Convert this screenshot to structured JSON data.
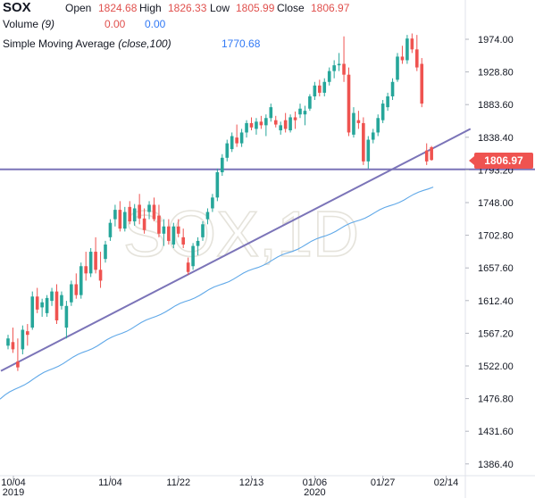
{
  "header": {
    "symbol": "SOX",
    "open_label": "Open",
    "open_value": "1824.68",
    "high_label": "High",
    "high_value": "1826.33",
    "low_label": "Low",
    "low_value": "1805.99",
    "close_label": "Close",
    "close_value": "1806.97"
  },
  "indicators": {
    "volume_label": "Volume",
    "volume_param": "(9)",
    "volume_value_1": "0.00",
    "volume_value_2": "0.00",
    "sma_label": "Simple Moving Average",
    "sma_param": "(close,100)",
    "sma_value": "1770.68"
  },
  "watermark": "SOX,1D",
  "last_price_tag": "1806.97",
  "colors": {
    "up": "#26a69a",
    "down": "#ef5350",
    "trendline": "#7b74b8",
    "sma": "#5fa8e8",
    "price_tag": "#ef5350"
  },
  "chart_data": {
    "type": "candlestick",
    "title": "SOX",
    "interval": "1D",
    "y_axis": {
      "ticks": [
        1974.0,
        1928.8,
        1883.6,
        1838.4,
        1793.2,
        1748.0,
        1702.8,
        1657.6,
        1612.4,
        1567.2,
        1522.0,
        1476.8,
        1431.6,
        1386.4
      ],
      "tick_labels": [
        "1974.00",
        "1928.80",
        "1883.60",
        "1838.40",
        "1793.20",
        "1748.00",
        "1702.80",
        "1657.60",
        "1612.40",
        "1567.20",
        "1522.00",
        "1476.80",
        "1431.60",
        "1386.40"
      ],
      "position": "right",
      "range": [
        1365,
        2013
      ]
    },
    "x_axis": {
      "ticks": [
        {
          "label": "10/04",
          "sub": "2019",
          "index": 0
        },
        {
          "label": "11/04",
          "sub": "",
          "index": 21
        },
        {
          "label": "11/22",
          "sub": "",
          "index": 35
        },
        {
          "label": "12/13",
          "sub": "",
          "index": 50
        },
        {
          "label": "01/06",
          "sub": "2020",
          "index": 63
        },
        {
          "label": "01/27",
          "sub": "",
          "index": 77
        },
        {
          "label": "02/14",
          "sub": "",
          "index": 90
        }
      ]
    },
    "candles": [
      [
        1550,
        1565,
        1545,
        1560
      ],
      [
        1555,
        1575,
        1540,
        1545
      ],
      [
        1528,
        1560,
        1515,
        1520
      ],
      [
        1545,
        1578,
        1538,
        1572
      ],
      [
        1570,
        1580,
        1550,
        1565
      ],
      [
        1575,
        1625,
        1572,
        1618
      ],
      [
        1618,
        1630,
        1595,
        1600
      ],
      [
        1603,
        1615,
        1590,
        1610
      ],
      [
        1595,
        1620,
        1590,
        1616
      ],
      [
        1612,
        1630,
        1605,
        1625
      ],
      [
        1625,
        1635,
        1580,
        1585
      ],
      [
        1605,
        1625,
        1600,
        1620
      ],
      [
        1575,
        1612,
        1560,
        1605
      ],
      [
        1610,
        1640,
        1605,
        1635
      ],
      [
        1635,
        1650,
        1615,
        1620
      ],
      [
        1620,
        1665,
        1615,
        1660
      ],
      [
        1660,
        1680,
        1640,
        1650
      ],
      [
        1650,
        1685,
        1645,
        1680
      ],
      [
        1680,
        1700,
        1650,
        1655
      ],
      [
        1655,
        1680,
        1630,
        1640
      ],
      [
        1670,
        1695,
        1665,
        1690
      ],
      [
        1700,
        1725,
        1695,
        1720
      ],
      [
        1725,
        1745,
        1715,
        1738
      ],
      [
        1738,
        1750,
        1708,
        1712
      ],
      [
        1712,
        1742,
        1708,
        1735
      ],
      [
        1742,
        1750,
        1718,
        1722
      ],
      [
        1722,
        1746,
        1716,
        1740
      ],
      [
        1745,
        1760,
        1718,
        1726
      ],
      [
        1726,
        1740,
        1705,
        1710
      ],
      [
        1735,
        1750,
        1725,
        1745
      ],
      [
        1745,
        1755,
        1722,
        1725
      ],
      [
        1730,
        1745,
        1700,
        1705
      ],
      [
        1705,
        1725,
        1688,
        1715
      ],
      [
        1715,
        1725,
        1690,
        1695
      ],
      [
        1690,
        1720,
        1685,
        1715
      ],
      [
        1715,
        1725,
        1700,
        1705
      ],
      [
        1700,
        1712,
        1685,
        1690
      ],
      [
        1665,
        1672,
        1648,
        1652
      ],
      [
        1660,
        1692,
        1655,
        1688
      ],
      [
        1688,
        1700,
        1675,
        1695
      ],
      [
        1700,
        1722,
        1695,
        1718
      ],
      [
        1725,
        1740,
        1718,
        1735
      ],
      [
        1740,
        1760,
        1735,
        1755
      ],
      [
        1755,
        1795,
        1750,
        1790
      ],
      [
        1790,
        1815,
        1785,
        1810
      ],
      [
        1810,
        1835,
        1805,
        1830
      ],
      [
        1822,
        1845,
        1818,
        1840
      ],
      [
        1838,
        1856,
        1825,
        1830
      ],
      [
        1830,
        1850,
        1825,
        1845
      ],
      [
        1845,
        1862,
        1838,
        1858
      ],
      [
        1858,
        1866,
        1848,
        1852
      ],
      [
        1850,
        1865,
        1842,
        1860
      ],
      [
        1860,
        1868,
        1850,
        1855
      ],
      [
        1855,
        1870,
        1840,
        1865
      ],
      [
        1865,
        1885,
        1860,
        1880
      ],
      [
        1862,
        1868,
        1852,
        1856
      ],
      [
        1848,
        1860,
        1842,
        1855
      ],
      [
        1862,
        1872,
        1845,
        1850
      ],
      [
        1848,
        1870,
        1845,
        1866
      ],
      [
        1866,
        1874,
        1850,
        1862
      ],
      [
        1870,
        1885,
        1865,
        1878
      ],
      [
        1870,
        1882,
        1855,
        1875
      ],
      [
        1878,
        1898,
        1875,
        1895
      ],
      [
        1895,
        1915,
        1890,
        1910
      ],
      [
        1910,
        1918,
        1895,
        1900
      ],
      [
        1900,
        1920,
        1895,
        1915
      ],
      [
        1915,
        1935,
        1910,
        1930
      ],
      [
        1930,
        1945,
        1920,
        1938
      ],
      [
        1938,
        1955,
        1930,
        1940
      ],
      [
        1940,
        1978,
        1915,
        1925
      ],
      [
        1925,
        1935,
        1840,
        1845
      ],
      [
        1842,
        1880,
        1838,
        1872
      ],
      [
        1862,
        1875,
        1850,
        1858
      ],
      [
        1858,
        1866,
        1800,
        1805
      ],
      [
        1805,
        1840,
        1795,
        1835
      ],
      [
        1835,
        1850,
        1830,
        1845
      ],
      [
        1845,
        1870,
        1840,
        1865
      ],
      [
        1862,
        1890,
        1858,
        1885
      ],
      [
        1880,
        1900,
        1875,
        1895
      ],
      [
        1895,
        1920,
        1890,
        1915
      ],
      [
        1918,
        1955,
        1915,
        1950
      ],
      [
        1950,
        1965,
        1940,
        1945
      ],
      [
        1945,
        1980,
        1940,
        1975
      ],
      [
        1975,
        1982,
        1955,
        1960
      ],
      [
        1960,
        1980,
        1930,
        1935
      ],
      [
        1940,
        1948,
        1880,
        1885
      ],
      [
        1820,
        1830,
        1800,
        1805
      ],
      [
        1824.68,
        1826.33,
        1805.99,
        1806.97
      ]
    ],
    "series": [
      {
        "name": "Simple Moving Average (close,100)",
        "type": "line",
        "start": 1476,
        "end": 1770.68
      }
    ],
    "trendlines": [
      {
        "type": "diagonal",
        "from": [
          0,
          1515
        ],
        "to": [
          95,
          1850
        ]
      },
      {
        "type": "horizontal",
        "value": 1794
      }
    ]
  }
}
